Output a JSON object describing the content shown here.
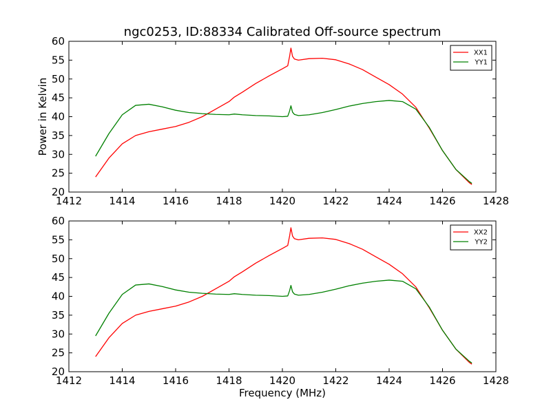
{
  "chart_data": [
    {
      "type": "line",
      "title": "ngc0253, ID:88334 Calibrated Off-source spectrum",
      "xlabel": "",
      "ylabel": "Power in Kelvin",
      "xlim": [
        1412,
        1428
      ],
      "ylim": [
        20,
        60
      ],
      "xticks": [
        1412,
        1414,
        1416,
        1418,
        1420,
        1422,
        1424,
        1426,
        1428
      ],
      "yticks": [
        20,
        25,
        30,
        35,
        40,
        45,
        50,
        55,
        60
      ],
      "grid": false,
      "legend_position": "top-right",
      "series": [
        {
          "name": "XX1",
          "color": "#ff0000",
          "x": [
            1413.0,
            1413.5,
            1414.0,
            1414.5,
            1415.0,
            1415.5,
            1416.0,
            1416.5,
            1417.0,
            1417.5,
            1418.0,
            1418.2,
            1418.5,
            1419.0,
            1419.5,
            1420.0,
            1420.2,
            1420.27,
            1420.32,
            1420.38,
            1420.45,
            1420.6,
            1421.0,
            1421.5,
            1422.0,
            1422.5,
            1423.0,
            1423.5,
            1424.0,
            1424.5,
            1425.0,
            1425.5,
            1426.0,
            1426.5,
            1427.0,
            1427.1
          ],
          "y": [
            24.0,
            29.0,
            32.8,
            35.0,
            36.0,
            36.7,
            37.4,
            38.5,
            40.0,
            42.0,
            44.0,
            45.2,
            46.5,
            48.8,
            50.8,
            52.7,
            53.5,
            56.0,
            58.2,
            56.0,
            55.3,
            55.0,
            55.4,
            55.5,
            55.1,
            54.0,
            52.5,
            50.5,
            48.5,
            46.0,
            42.5,
            37.0,
            31.0,
            26.0,
            22.5,
            22.0
          ]
        },
        {
          "name": "YY1",
          "color": "#008000",
          "x": [
            1413.0,
            1413.5,
            1414.0,
            1414.5,
            1415.0,
            1415.5,
            1416.0,
            1416.5,
            1417.0,
            1417.5,
            1418.0,
            1418.2,
            1418.5,
            1419.0,
            1419.5,
            1420.0,
            1420.2,
            1420.27,
            1420.32,
            1420.38,
            1420.45,
            1420.6,
            1421.0,
            1421.5,
            1422.0,
            1422.5,
            1423.0,
            1423.5,
            1424.0,
            1424.5,
            1425.0,
            1425.5,
            1426.0,
            1426.5,
            1427.0,
            1427.1
          ],
          "y": [
            29.5,
            35.5,
            40.5,
            43.0,
            43.3,
            42.6,
            41.7,
            41.1,
            40.8,
            40.6,
            40.5,
            40.7,
            40.5,
            40.3,
            40.2,
            40.0,
            40.1,
            41.5,
            42.9,
            41.2,
            40.6,
            40.3,
            40.5,
            41.1,
            41.9,
            42.8,
            43.5,
            44.0,
            44.3,
            44.0,
            42.0,
            37.2,
            31.0,
            26.0,
            22.8,
            22.3
          ]
        }
      ]
    },
    {
      "type": "line",
      "title": "",
      "xlabel": "Frequency (MHz)",
      "ylabel": "",
      "xlim": [
        1412,
        1428
      ],
      "ylim": [
        20,
        60
      ],
      "xticks": [
        1412,
        1414,
        1416,
        1418,
        1420,
        1422,
        1424,
        1426,
        1428
      ],
      "yticks": [
        20,
        25,
        30,
        35,
        40,
        45,
        50,
        55,
        60
      ],
      "grid": false,
      "legend_position": "top-right",
      "series": [
        {
          "name": "XX2",
          "color": "#ff0000",
          "x": [
            1413.0,
            1413.5,
            1414.0,
            1414.5,
            1415.0,
            1415.5,
            1416.0,
            1416.5,
            1417.0,
            1417.5,
            1418.0,
            1418.2,
            1418.5,
            1419.0,
            1419.5,
            1420.0,
            1420.2,
            1420.27,
            1420.32,
            1420.38,
            1420.45,
            1420.6,
            1421.0,
            1421.5,
            1422.0,
            1422.5,
            1423.0,
            1423.5,
            1424.0,
            1424.5,
            1425.0,
            1425.5,
            1426.0,
            1426.5,
            1427.0,
            1427.1
          ],
          "y": [
            24.0,
            29.0,
            32.8,
            35.0,
            36.0,
            36.7,
            37.4,
            38.5,
            40.0,
            42.0,
            44.0,
            45.2,
            46.5,
            48.8,
            50.8,
            52.7,
            53.5,
            56.0,
            58.2,
            56.0,
            55.3,
            55.0,
            55.4,
            55.5,
            55.1,
            54.0,
            52.5,
            50.5,
            48.5,
            46.0,
            42.5,
            37.0,
            31.0,
            26.0,
            22.5,
            22.0
          ]
        },
        {
          "name": "YY2",
          "color": "#008000",
          "x": [
            1413.0,
            1413.5,
            1414.0,
            1414.5,
            1415.0,
            1415.5,
            1416.0,
            1416.5,
            1417.0,
            1417.5,
            1418.0,
            1418.2,
            1418.5,
            1419.0,
            1419.5,
            1420.0,
            1420.2,
            1420.27,
            1420.32,
            1420.38,
            1420.45,
            1420.6,
            1421.0,
            1421.5,
            1422.0,
            1422.5,
            1423.0,
            1423.5,
            1424.0,
            1424.5,
            1425.0,
            1425.5,
            1426.0,
            1426.5,
            1427.0,
            1427.1
          ],
          "y": [
            29.5,
            35.5,
            40.5,
            43.0,
            43.3,
            42.6,
            41.7,
            41.1,
            40.8,
            40.6,
            40.5,
            40.7,
            40.5,
            40.3,
            40.2,
            40.0,
            40.1,
            41.5,
            42.9,
            41.2,
            40.6,
            40.3,
            40.5,
            41.1,
            41.9,
            42.8,
            43.5,
            44.0,
            44.3,
            44.0,
            42.0,
            37.2,
            31.0,
            26.0,
            22.8,
            22.3
          ]
        }
      ]
    }
  ]
}
